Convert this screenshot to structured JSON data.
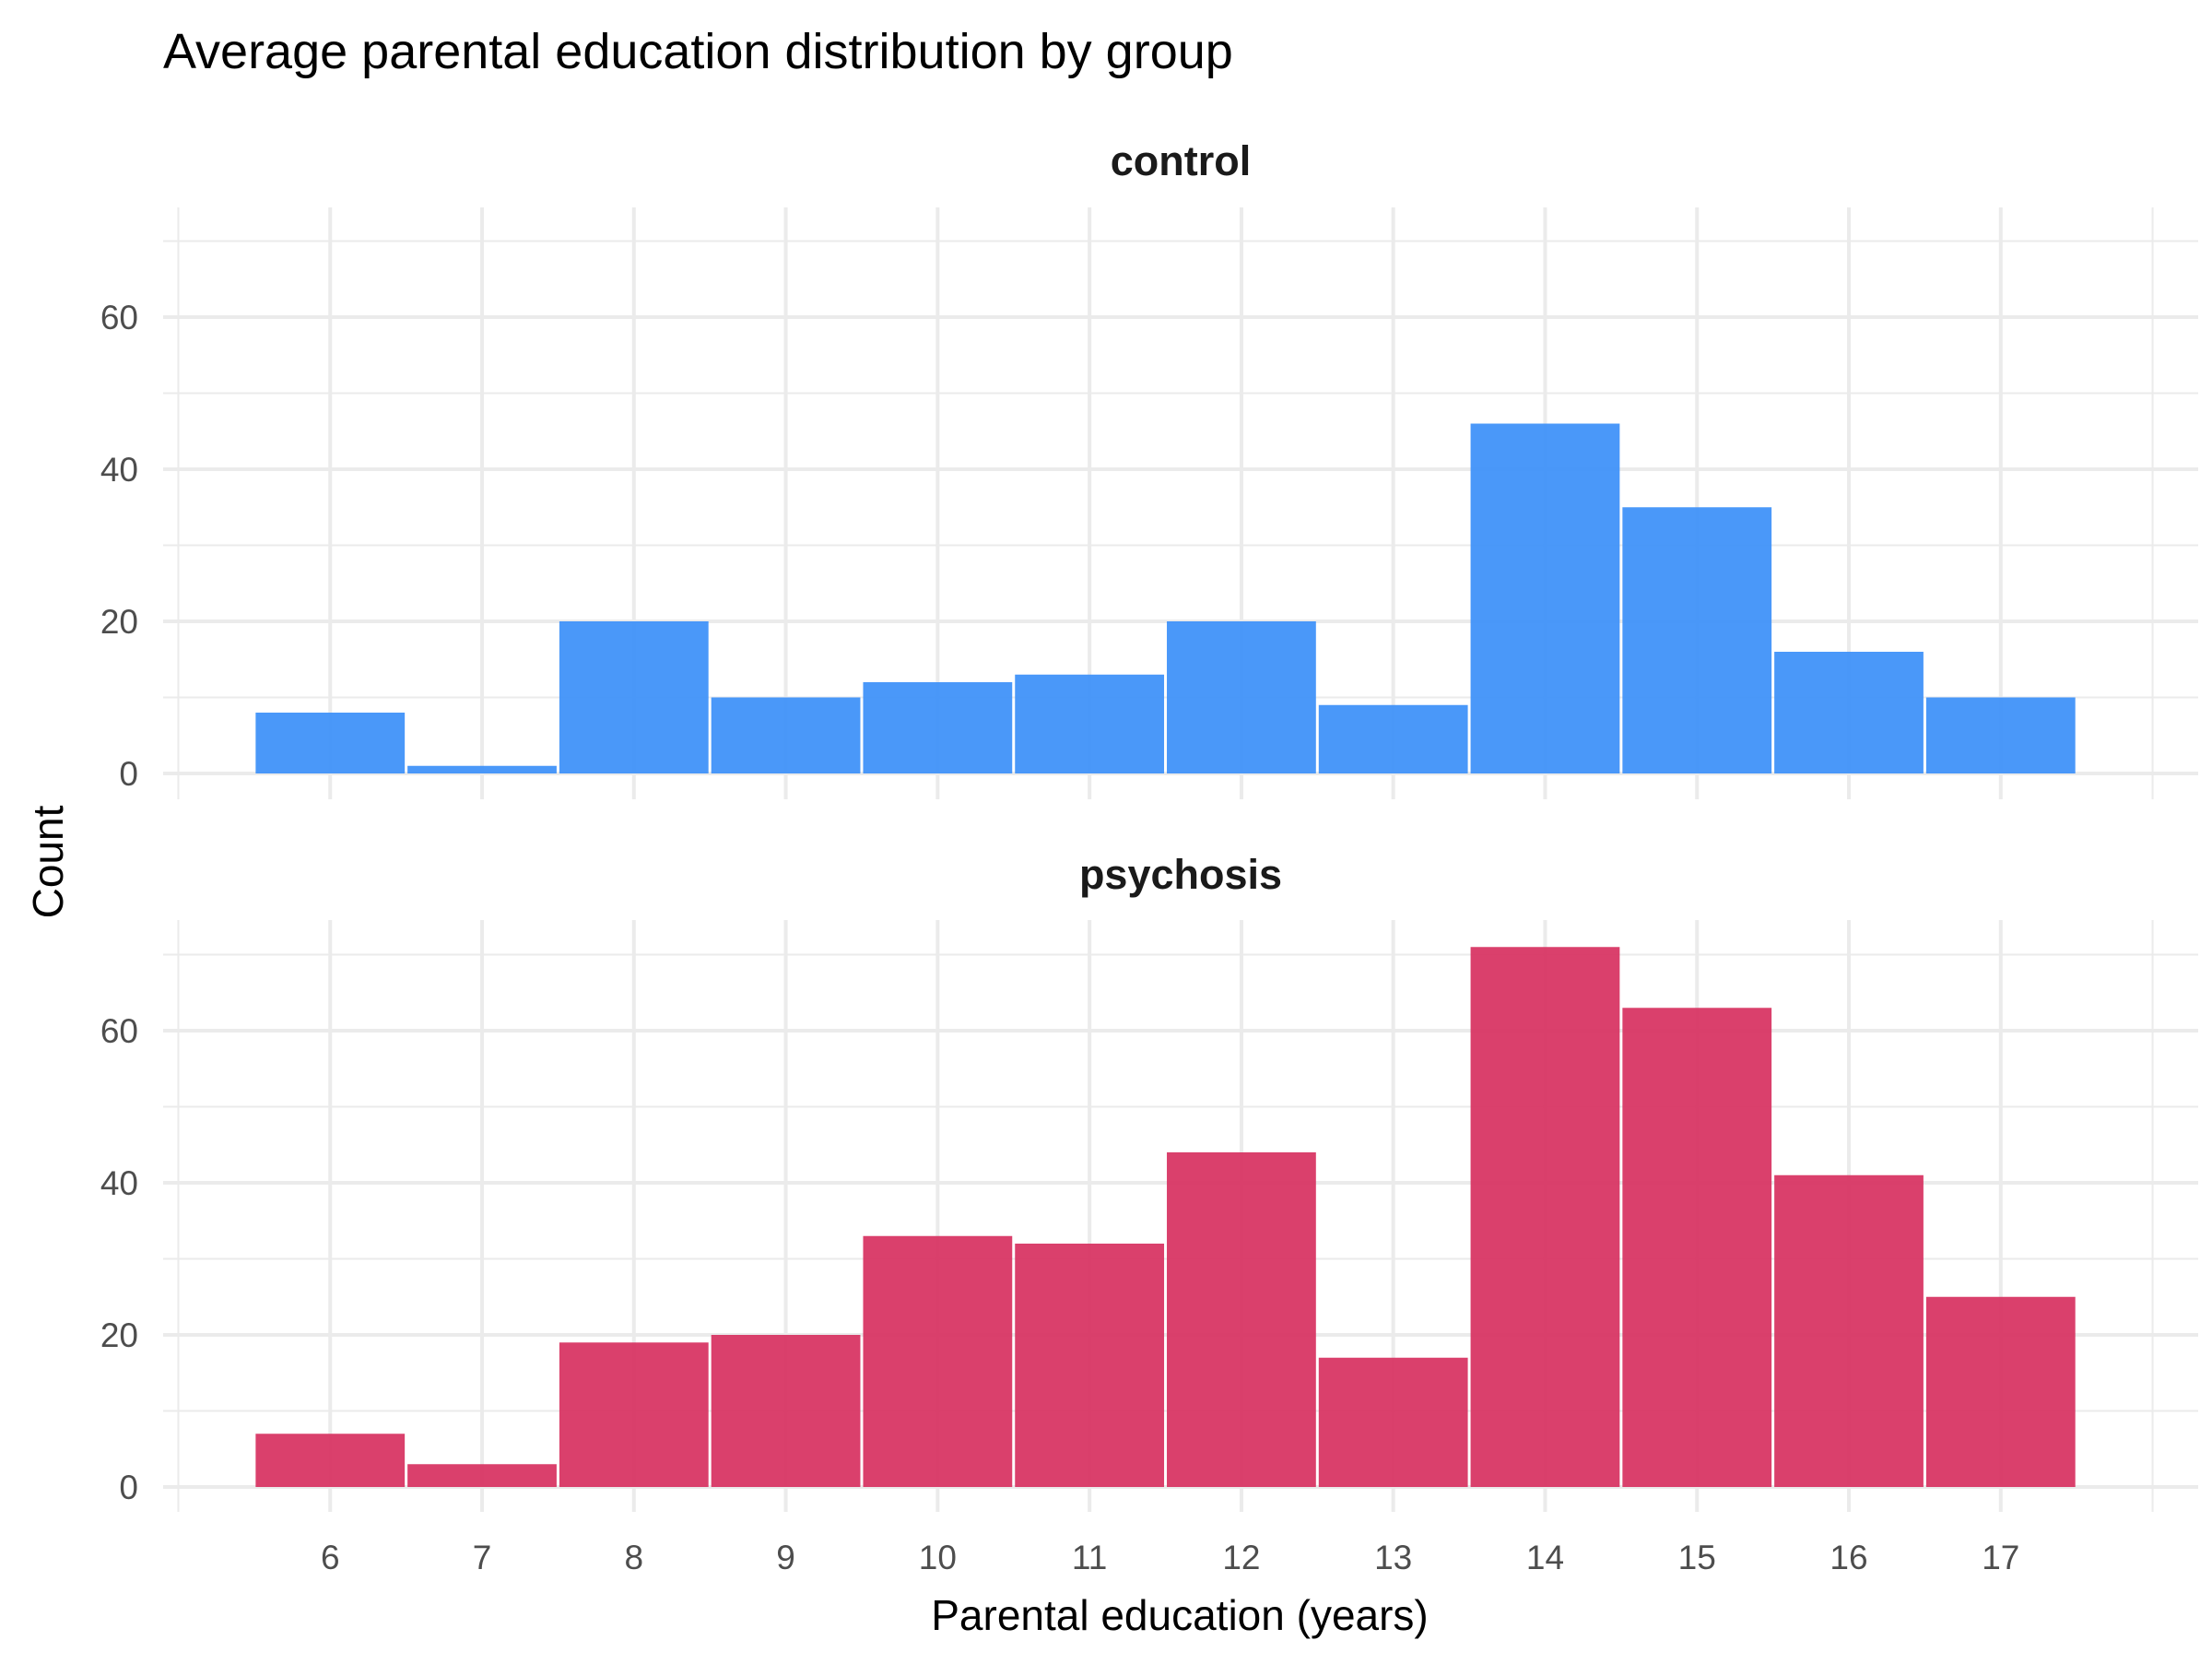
{
  "chart_data": {
    "type": "bar",
    "title": "Average parental education distribution by group",
    "xlabel": "Parental education (years)",
    "ylabel": "Count",
    "x_ticks": [
      "6",
      "7",
      "8",
      "9",
      "10",
      "11",
      "12",
      "13",
      "14",
      "15",
      "16",
      "17"
    ],
    "y_ticks": [
      "0",
      "20",
      "40",
      "60"
    ],
    "ylim": [
      0,
      70
    ],
    "grid": true,
    "categories": [
      6,
      7,
      8,
      9,
      10,
      11,
      12,
      13,
      14,
      15,
      16,
      17
    ],
    "series": [
      {
        "name": "control",
        "color": "#3b8ff8",
        "values": [
          8,
          1,
          20,
          10,
          12,
          13,
          20,
          9,
          46,
          35,
          16,
          10
        ]
      },
      {
        "name": "psychosis",
        "color": "#d7305f",
        "values": [
          7,
          3,
          19,
          20,
          33,
          32,
          44,
          17,
          71,
          63,
          41,
          25
        ]
      }
    ]
  }
}
